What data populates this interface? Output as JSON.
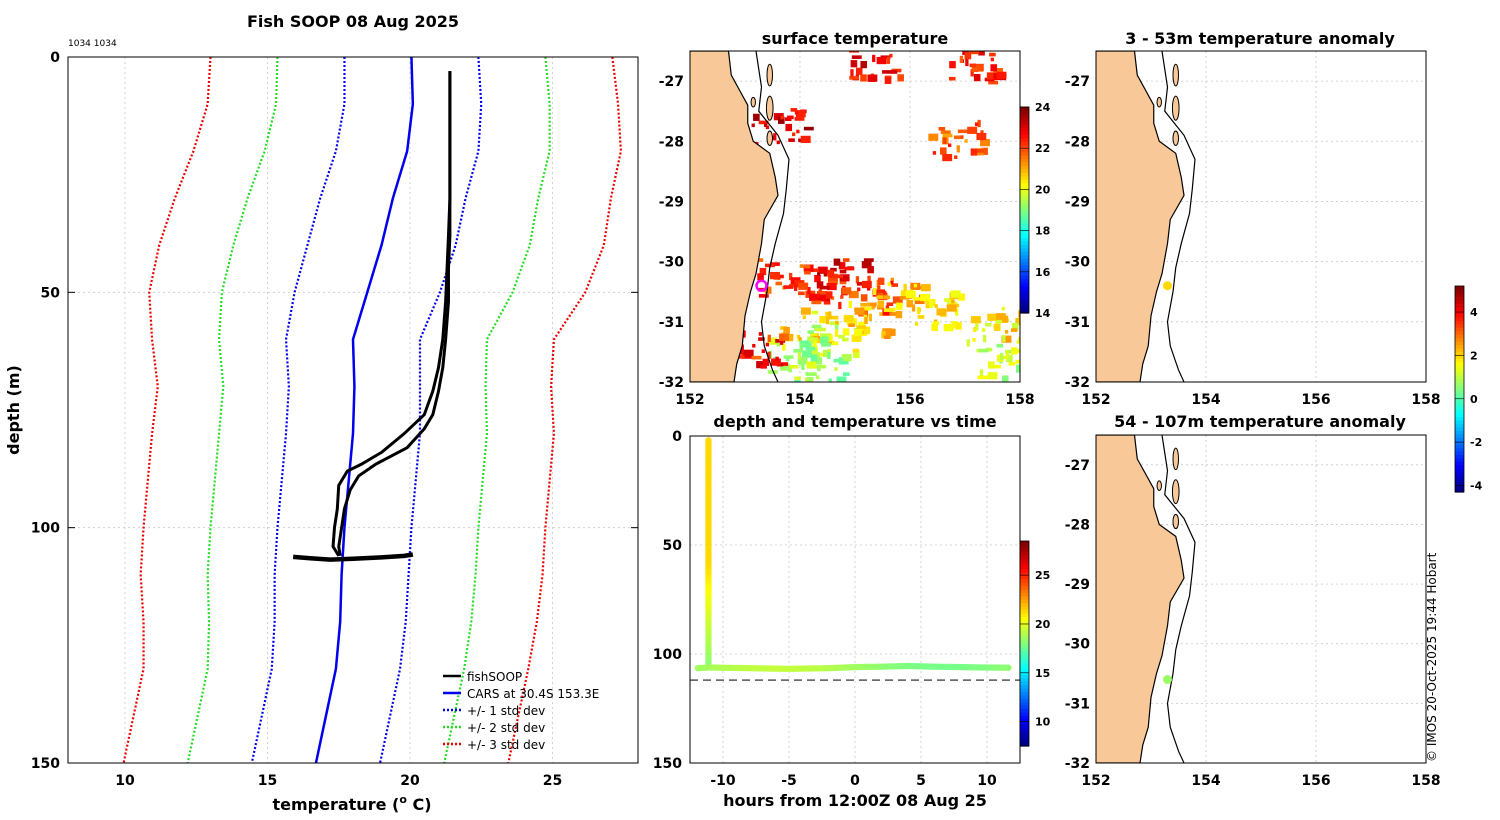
{
  "colors": {
    "profile": "#000000",
    "cars": "#0000ee",
    "std1": "#0000ee",
    "std2": "#22dd22",
    "std3": "#ee0000",
    "land": "#f8c898",
    "marker_ring": "#ff00ff",
    "grid": "#c8c8c8"
  },
  "chart_data": [
    {
      "id": "profile",
      "type": "line",
      "title": "Fish SOOP 08 Aug 2025",
      "corner_label": "1034 1034",
      "xlabel": "temperature (",
      "xlabel_sup": "o",
      "xlabel_tail": " C)",
      "ylabel": "depth (m)",
      "xlim": [
        8,
        28
      ],
      "ylim": [
        0,
        150
      ],
      "y_inverted": true,
      "xticks": [
        10,
        15,
        20,
        25
      ],
      "yticks": [
        0,
        50,
        100,
        150
      ],
      "grid": true,
      "legend_position": "bottom-right",
      "legend": [
        {
          "label": "fishSOOP",
          "style": "solid",
          "color_key": "profile"
        },
        {
          "label": "CARS at 30.4S 153.3E",
          "style": "solid",
          "color_key": "cars"
        },
        {
          "label": "+/- 1 std dev",
          "style": "dotted",
          "color_key": "std1"
        },
        {
          "label": "+/- 2 std dev",
          "style": "dotted",
          "color_key": "std2"
        },
        {
          "label": "+/- 3 std dev",
          "style": "dotted",
          "color_key": "std3"
        }
      ],
      "cars_depth": [
        0,
        10,
        20,
        30,
        40,
        50,
        60,
        70,
        80,
        90,
        100,
        110,
        120,
        130,
        140,
        150
      ],
      "cars_mean": [
        20.05,
        20.1,
        19.9,
        19.4,
        19.0,
        18.5,
        18.0,
        18.05,
        18.0,
        17.85,
        17.7,
        17.6,
        17.55,
        17.4,
        17.05,
        16.7
      ],
      "cars_std": [
        2.35,
        2.4,
        2.5,
        2.55,
        2.6,
        2.55,
        2.35,
        2.3,
        2.35,
        2.35,
        2.35,
        2.35,
        2.3,
        2.25,
        2.25,
        2.25
      ],
      "profile_down": [
        [
          21.4,
          3
        ],
        [
          21.4,
          15
        ],
        [
          21.4,
          30
        ],
        [
          21.35,
          38
        ],
        [
          21.3,
          45
        ],
        [
          21.25,
          52
        ],
        [
          21.15,
          60
        ],
        [
          21.0,
          66
        ],
        [
          20.8,
          71
        ],
        [
          20.5,
          76
        ],
        [
          19.8,
          80
        ],
        [
          19.0,
          84
        ],
        [
          18.3,
          86.5
        ],
        [
          17.8,
          88
        ],
        [
          17.5,
          91
        ],
        [
          17.45,
          96
        ],
        [
          17.35,
          100
        ],
        [
          17.3,
          104
        ],
        [
          17.5,
          106
        ]
      ],
      "profile_up": [
        [
          21.4,
          3
        ],
        [
          21.4,
          15
        ],
        [
          21.4,
          30
        ],
        [
          21.4,
          38
        ],
        [
          21.35,
          45
        ],
        [
          21.35,
          52
        ],
        [
          21.25,
          60
        ],
        [
          21.15,
          66
        ],
        [
          21.0,
          71
        ],
        [
          20.8,
          76
        ],
        [
          20.5,
          79
        ],
        [
          19.9,
          83
        ],
        [
          18.8,
          86.5
        ],
        [
          18.2,
          89
        ],
        [
          17.9,
          92
        ],
        [
          17.7,
          96
        ],
        [
          17.6,
          100
        ],
        [
          17.5,
          104
        ],
        [
          17.55,
          106
        ]
      ],
      "profile_bottom": [
        [
          15.9,
          106.2
        ],
        [
          16.5,
          106.5
        ],
        [
          17.2,
          106.8
        ],
        [
          18.0,
          106.6
        ],
        [
          19.0,
          106.3
        ],
        [
          19.8,
          106
        ],
        [
          20.1,
          105.7
        ]
      ]
    },
    {
      "id": "sst",
      "type": "heatmap",
      "title": "surface temperature",
      "xlim": [
        152,
        158
      ],
      "ylim": [
        -32,
        -26.5
      ],
      "xticks": [
        152,
        154,
        156,
        158
      ],
      "yticks": [
        -27,
        -28,
        -29,
        -30,
        -31,
        -32
      ],
      "colorbar": {
        "range": [
          14,
          24
        ],
        "ticks": [
          14,
          16,
          18,
          20,
          22,
          24
        ]
      },
      "position_marker": {
        "lon": 153.3,
        "lat": -30.4
      },
      "sst_patches": [
        {
          "lon": 154.3,
          "lat": -30.5,
          "value": 22.5
        },
        {
          "lon": 154.8,
          "lat": -30.3,
          "value": 22.8
        },
        {
          "lon": 155.2,
          "lat": -30.6,
          "value": 22.0
        },
        {
          "lon": 153.7,
          "lat": -30.3,
          "value": 22.2
        },
        {
          "lon": 155.8,
          "lat": -30.7,
          "value": 21.0
        },
        {
          "lon": 156.5,
          "lat": -30.8,
          "value": 20.5
        },
        {
          "lon": 157.5,
          "lat": -31.1,
          "value": 20.5
        },
        {
          "lon": 154.1,
          "lat": -31.1,
          "value": 20.5
        },
        {
          "lon": 154.6,
          "lat": -31.3,
          "value": 19.8
        },
        {
          "lon": 155.1,
          "lat": -31.0,
          "value": 20.8
        },
        {
          "lon": 153.9,
          "lat": -31.6,
          "value": 19.5
        },
        {
          "lon": 154.3,
          "lat": -31.8,
          "value": 19.2
        },
        {
          "lon": 157.6,
          "lat": -31.7,
          "value": 19.5
        },
        {
          "lon": 153.3,
          "lat": -31.5,
          "value": 22.5
        },
        {
          "lon": 157.2,
          "lat": -26.8,
          "value": 22.5
        },
        {
          "lon": 155.3,
          "lat": -26.7,
          "value": 22.8
        },
        {
          "lon": 153.6,
          "lat": -27.8,
          "value": 23.0
        },
        {
          "lon": 156.8,
          "lat": -28.0,
          "value": 21.8
        }
      ]
    },
    {
      "id": "anom_shallow",
      "type": "scatter",
      "title": "3 - 53m temperature anomaly",
      "xlim": [
        152,
        158
      ],
      "ylim": [
        -32,
        -26.5
      ],
      "xticks": [
        152,
        154,
        156,
        158
      ],
      "yticks": [
        -27,
        -28,
        -29,
        -30,
        -31,
        -32
      ],
      "points": [
        {
          "lon": 153.3,
          "lat": -30.4,
          "anomaly": 2.0
        }
      ]
    },
    {
      "id": "anom_deep",
      "type": "scatter",
      "title": "54 - 107m temperature anomaly",
      "xlim": [
        152,
        158
      ],
      "ylim": [
        -32,
        -26.5
      ],
      "xticks": [
        152,
        154,
        156,
        158
      ],
      "yticks": [
        -27,
        -28,
        -29,
        -30,
        -31,
        -32
      ],
      "points": [
        {
          "lon": 153.3,
          "lat": -30.6,
          "anomaly": 0.7
        }
      ]
    },
    {
      "id": "anomaly_colorbar",
      "type": "heatmap",
      "range": [
        -4.3,
        5.2
      ],
      "ticks": [
        -4,
        -2,
        0,
        2,
        4
      ]
    },
    {
      "id": "time_depth",
      "type": "scatter",
      "title": "depth and temperature vs time",
      "xlabel": "hours from 12:00Z 08 Aug 25",
      "xlim": [
        -12.5,
        12.5
      ],
      "ylim": [
        0,
        150
      ],
      "y_inverted": true,
      "xticks": [
        -10,
        -5,
        0,
        5,
        10
      ],
      "yticks": [
        0,
        50,
        100,
        150
      ],
      "bottom_depth": 112,
      "colorbar": {
        "range": [
          7.5,
          28.5
        ],
        "ticks": [
          10,
          15,
          20,
          25
        ]
      },
      "descent": {
        "hour": -11.1,
        "depth_start": 2,
        "depth_end": 106
      },
      "bottom_track": [
        [
          -11.9,
          106.5
        ],
        [
          -11.1,
          106.2
        ],
        [
          -8,
          106.5
        ],
        [
          -5,
          106.8
        ],
        [
          -2,
          106.5
        ],
        [
          0,
          106.0
        ],
        [
          2,
          105.8
        ],
        [
          4,
          105.5
        ],
        [
          6,
          105.8
        ],
        [
          8,
          106.0
        ],
        [
          10,
          106.2
        ],
        [
          11.8,
          106.3
        ]
      ],
      "bottom_temperature": 18.6
    }
  ],
  "watermark": "© IMOS 20-Oct-2025 19:44 Hobart"
}
